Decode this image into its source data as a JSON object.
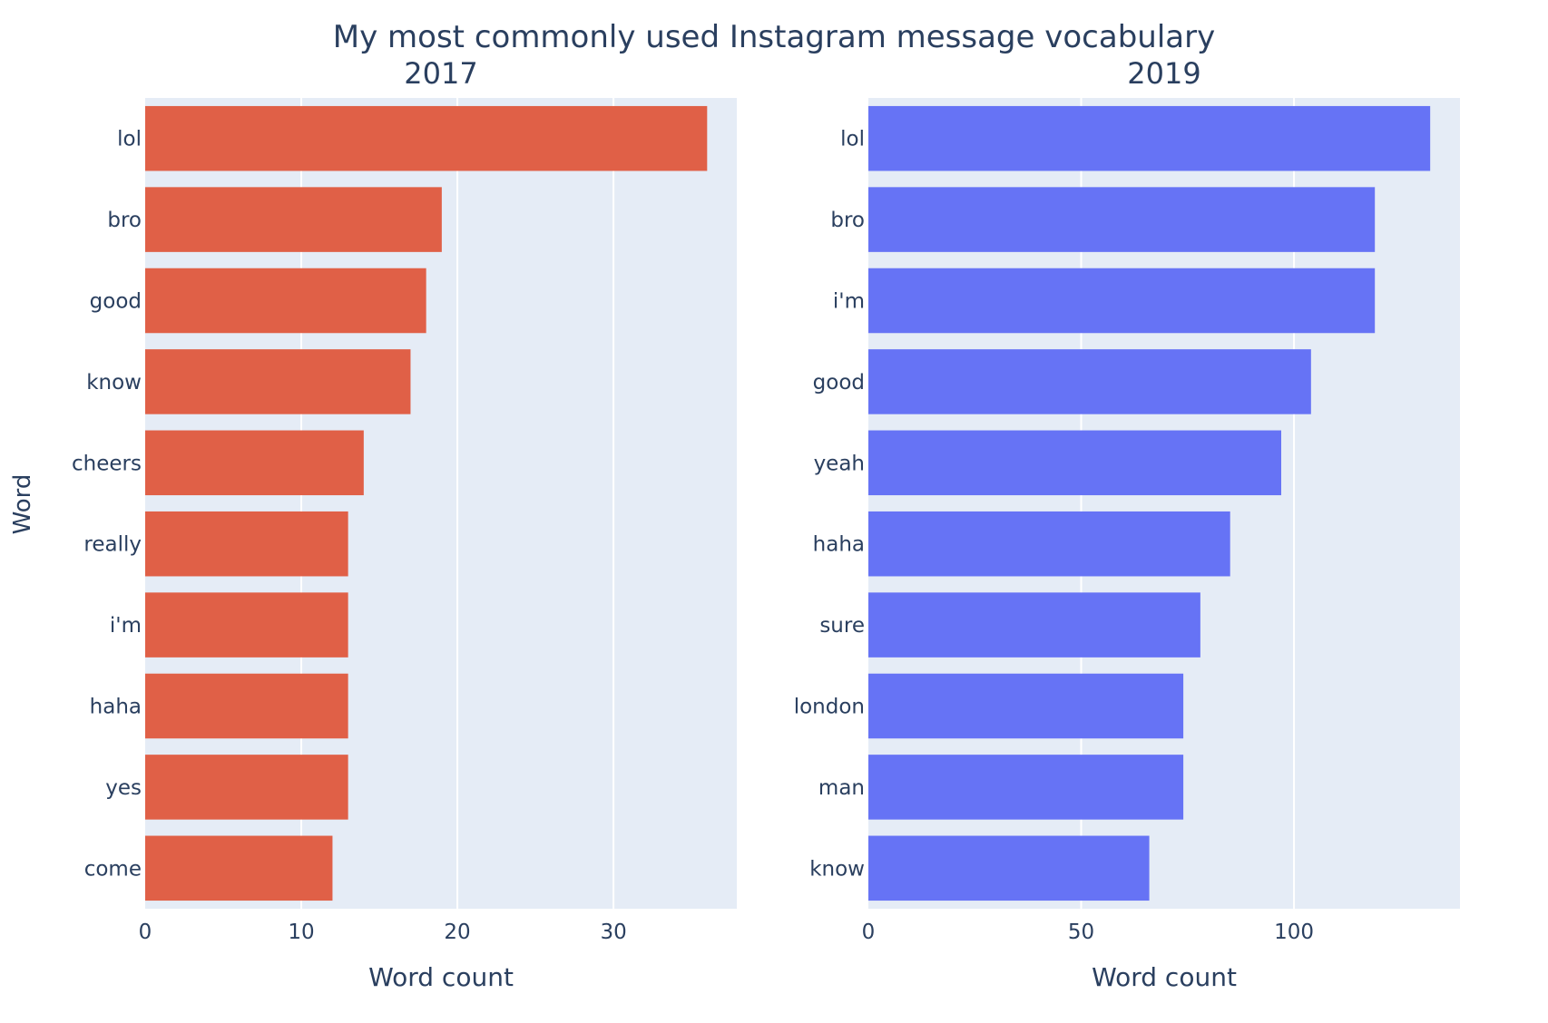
{
  "figure_title": "My most commonly used Instagram message vocabulary",
  "shared_ylabel": "Word",
  "colors": {
    "plot_background": "#e5ecf6",
    "gridline": "#ffffff",
    "text": "#2a3f5f"
  },
  "chart_data": [
    {
      "type": "bar",
      "orientation": "horizontal",
      "title": "2017",
      "xlabel": "Word count",
      "ylabel": "Word",
      "color": "#e06047",
      "categories": [
        "lol",
        "bro",
        "good",
        "know",
        "cheers",
        "really",
        "i'm",
        "haha",
        "yes",
        "come"
      ],
      "values": [
        36,
        19,
        18,
        17,
        14,
        13,
        13,
        13,
        13,
        12
      ],
      "xlim": [
        0,
        37.9
      ],
      "xticks": [
        0,
        10,
        20,
        30
      ],
      "grid": true,
      "legend": "none"
    },
    {
      "type": "bar",
      "orientation": "horizontal",
      "title": "2019",
      "xlabel": "Word count",
      "ylabel": "",
      "color": "#6673f5",
      "categories": [
        "lol",
        "bro",
        "i'm",
        "good",
        "yeah",
        "haha",
        "sure",
        "london",
        "man",
        "know"
      ],
      "values": [
        132,
        119,
        119,
        104,
        97,
        85,
        78,
        74,
        74,
        66
      ],
      "xlim": [
        0,
        139
      ],
      "xticks": [
        0,
        50,
        100
      ],
      "grid": true,
      "legend": "none"
    }
  ]
}
